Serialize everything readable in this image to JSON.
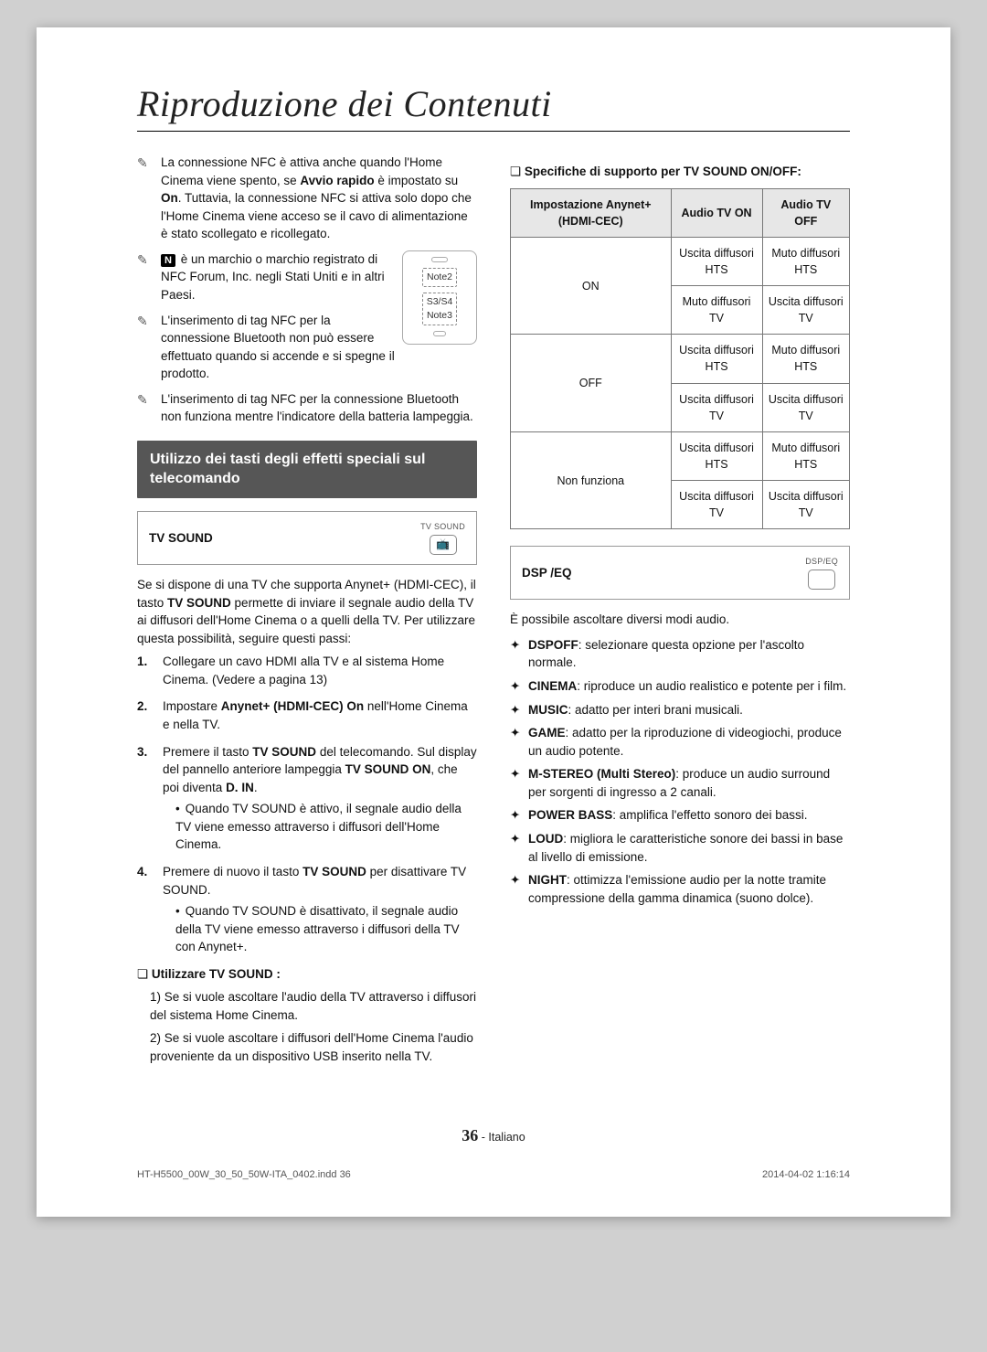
{
  "title": "Riproduzione dei Contenuti",
  "left": {
    "bullets": [
      "La connessione NFC è attiva anche quando l'Home Cinema viene spento, se <b>Avvio rapido</b> è impostato su <b>On</b>. Tuttavia, la connessione NFC si attiva solo dopo che l'Home Cinema viene acceso se il cavo di alimentazione è stato scollegato e ricollegato.",
      "<span class='nlogo'>N</span> è un marchio o marchio registrato di NFC Forum, Inc. negli Stati Uniti e in altri Paesi.",
      "L'inserimento di tag NFC per la connessione Bluetooth non può essere effettuato quando si accende e si spegne il prodotto.",
      "L'inserimento di tag NFC per la connessione Bluetooth non funziona mentre l'indicatore della batteria lampeggia."
    ],
    "phone": {
      "labels": [
        "Note2",
        "S3/S4\nNote3"
      ]
    },
    "section": "Utilizzo dei tasti degli effetti speciali sul telecomando",
    "tvsound_label": "TV SOUND",
    "tvsound_btn_cap": "TV SOUND",
    "tvsound_glyph": "📺",
    "tvsound_intro": "Se si dispone di una TV che supporta Anynet+ (HDMI-CEC), il tasto <b>TV SOUND</b> permette di inviare il segnale audio della TV ai diffusori dell'Home Cinema o a quelli della TV. Per utilizzare questa possibilità, seguire questi passi:",
    "steps": [
      "Collegare un cavo HDMI alla TV e al sistema Home Cinema. (Vedere a pagina 13)",
      "Impostare <b>Anynet+ (HDMI-CEC) On</b> nell'Home Cinema e nella TV.",
      "Premere il tasto <b>TV SOUND</b> del telecomando. Sul display del pannello anteriore lampeggia <b>TV SOUND ON</b>, che poi diventa <b>D. IN</b>.",
      "Premere di nuovo il tasto <b>TV SOUND</b> per disattivare TV SOUND."
    ],
    "step3_sub": "Quando TV SOUND è attivo, il segnale audio della TV viene emesso attraverso i diffusori dell'Home Cinema.",
    "step4_sub": "Quando TV SOUND è disattivato, il segnale audio della TV viene emesso attraverso i diffusori della TV con Anynet+.",
    "use_heading": "Utilizzare TV SOUND :",
    "use_items": [
      "1) Se si vuole ascoltare l'audio della TV attraverso i diffusori del sistema Home Cinema.",
      "2) Se si vuole ascoltare i diffusori dell'Home Cinema l'audio proveniente da un dispositivo USB inserito nella TV."
    ]
  },
  "right": {
    "spec_heading": "Specifiche di supporto per TV SOUND ON/OFF:",
    "table": {
      "headers": [
        "Impostazione Anynet+ (HDMI-CEC)",
        "Audio TV ON",
        "Audio TV OFF"
      ],
      "rows": [
        {
          "k": "ON",
          "r": [
            [
              "Uscita diffusori HTS",
              "Muto diffusori HTS"
            ],
            [
              "Muto diffusori TV",
              "Uscita diffusori TV"
            ]
          ]
        },
        {
          "k": "OFF",
          "r": [
            [
              "Uscita diffusori HTS",
              "Muto diffusori HTS"
            ],
            [
              "Uscita diffusori TV",
              "Uscita diffusori TV"
            ]
          ]
        },
        {
          "k": "Non funziona",
          "r": [
            [
              "Uscita diffusori HTS",
              "Muto diffusori HTS"
            ],
            [
              "Uscita diffusori TV",
              "Uscita diffusori TV"
            ]
          ]
        }
      ]
    },
    "dsp_label": "DSP /EQ",
    "dsp_btn_cap": "DSP/EQ",
    "dsp_intro": "È possibile ascoltare diversi modi audio.",
    "modes": [
      [
        "DSPOFF",
        "selezionare questa opzione per l'ascolto normale."
      ],
      [
        "CINEMA",
        "riproduce un audio realistico e potente per i film."
      ],
      [
        "MUSIC",
        "adatto per interi brani musicali."
      ],
      [
        "GAME",
        "adatto per la riproduzione di videogiochi, produce un audio potente."
      ],
      [
        "M-STEREO (Multi Stereo)",
        "produce un audio surround per sorgenti di ingresso a 2 canali."
      ],
      [
        "POWER BASS",
        "amplifica l'effetto sonoro dei bassi."
      ],
      [
        "LOUD",
        "migliora le caratteristiche sonore dei bassi in base al livello di emissione."
      ],
      [
        "NIGHT",
        "ottimizza l'emissione audio per la notte tramite compressione della gamma dinamica (suono dolce)."
      ]
    ]
  },
  "footer": {
    "page": "36",
    "lang": "Italiano"
  },
  "meta": {
    "file": "HT-H5500_00W_30_50_50W-ITA_0402.indd   36",
    "stamp": "2014-04-02    1:16:14"
  }
}
